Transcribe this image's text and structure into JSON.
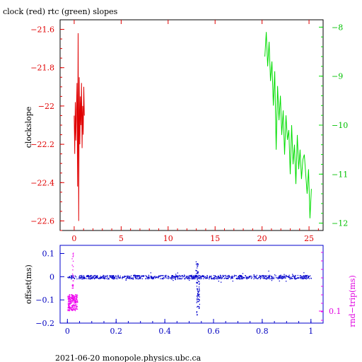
{
  "colors": {
    "red": "#e00000",
    "green": "#00dd00",
    "blue": "#0000cc",
    "magenta": "#ee00ee",
    "frame": "#000000"
  },
  "title": "clock (red) rtc (green) slopes",
  "footer": "2021-06-20  monopole.physics.ubc.ca",
  "chart_data": [
    {
      "type": "line",
      "xlabel": "",
      "ylabel": "clockslope",
      "xlim": [
        -1.5,
        26.5
      ],
      "x_ticks": [
        0,
        5,
        10,
        15,
        20,
        25
      ],
      "y_left": {
        "ylim": [
          -22.65,
          -21.55
        ],
        "ticks": [
          -21.6,
          -21.8,
          -22,
          -22.2,
          -22.4,
          -22.6
        ],
        "labels": [
          "−21.6",
          "−21.8",
          "−22",
          "−22.2",
          "−22.4",
          "−22.6"
        ]
      },
      "y_right": {
        "ylim": [
          -12.15,
          -7.85
        ],
        "ticks": [
          -8,
          -9,
          -10,
          -11,
          -12
        ],
        "labels": [
          "−8",
          "−9",
          "−10",
          "−11",
          "−12"
        ]
      },
      "series": [
        {
          "name": "clock",
          "axis": "left",
          "x": [
            0.0,
            0.06,
            0.12,
            0.18,
            0.24,
            0.3,
            0.36,
            0.42,
            0.48,
            0.54,
            0.6,
            0.66,
            0.72,
            0.78,
            0.84,
            0.9,
            0.96,
            1.02,
            1.08
          ],
          "values": [
            -22.05,
            -22.25,
            -21.98,
            -22.18,
            -22.02,
            -21.88,
            -22.42,
            -21.62,
            -22.6,
            -21.85,
            -22.2,
            -21.95,
            -22.1,
            -21.88,
            -22.22,
            -22.0,
            -22.15,
            -21.9,
            -22.05
          ]
        },
        {
          "name": "rtc",
          "axis": "right",
          "x": [
            20.3,
            20.45,
            20.6,
            20.75,
            20.9,
            21.05,
            21.2,
            21.35,
            21.5,
            21.65,
            21.8,
            21.95,
            22.1,
            22.25,
            22.4,
            22.55,
            22.7,
            22.85,
            23.0,
            23.15,
            23.3,
            23.45,
            23.6,
            23.75,
            23.9,
            24.05,
            24.2,
            24.35,
            24.5,
            24.65,
            24.8,
            24.95,
            25.1,
            25.25
          ],
          "values": [
            -8.6,
            -8.1,
            -8.8,
            -8.3,
            -9.1,
            -8.7,
            -9.6,
            -8.9,
            -10.5,
            -9.2,
            -9.9,
            -9.4,
            -10.2,
            -9.7,
            -10.6,
            -9.8,
            -10.3,
            -10.1,
            -11.0,
            -10.0,
            -10.8,
            -10.4,
            -11.2,
            -10.2,
            -10.9,
            -10.5,
            -11.1,
            -10.7,
            -10.6,
            -11.0,
            -11.4,
            -10.9,
            -11.9,
            -11.3
          ]
        }
      ]
    },
    {
      "type": "scatter",
      "xlabel": "",
      "ylabel": "offset(ms)",
      "xlim": [
        -0.03,
        1.05
      ],
      "x_ticks": [
        0,
        0.2,
        0.4,
        0.6,
        0.8,
        1
      ],
      "x_tick_labels": [
        "0",
        "0.2",
        "0.4",
        "0.6",
        "0.8",
        "1"
      ],
      "y_left": {
        "ylim": [
          -0.2,
          0.135
        ],
        "ticks": [
          0.1,
          0,
          -0.1,
          -0.2
        ],
        "labels": [
          "0.1",
          "0",
          "−0.1",
          "−0.2"
        ]
      },
      "y_right": {
        "label": "rnd−trip(ms)",
        "ticks": [
          0.1
        ],
        "labels": [
          "0.1"
        ]
      },
      "series": [
        {
          "name": "offset",
          "axis": "left",
          "baseline": 0.0,
          "x_range": [
            0.0,
            1.0
          ],
          "spread": 0.008,
          "dip": {
            "x": 0.535,
            "min": -0.165
          },
          "spike": {
            "x": 0.53,
            "max": 0.07
          }
        },
        {
          "name": "rnd-trip",
          "axis": "left",
          "x_range": [
            0.0,
            0.04
          ],
          "center": -0.11,
          "spread": 0.035,
          "spike_max": 0.11
        }
      ]
    }
  ]
}
